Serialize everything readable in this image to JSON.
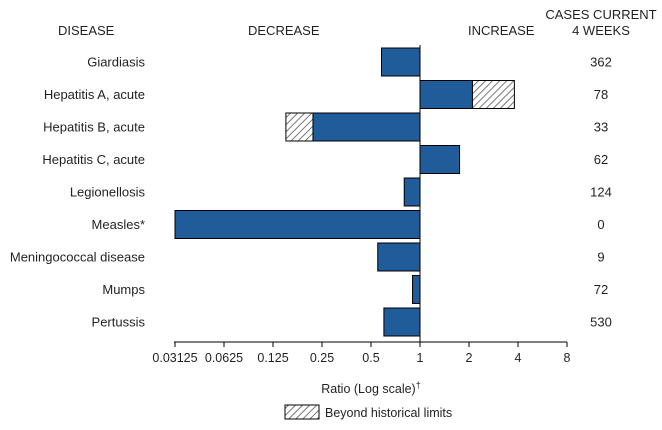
{
  "headers": {
    "disease": "DISEASE",
    "decrease": "DECREASE",
    "increase": "INCREASE",
    "cases_line1": "CASES CURRENT",
    "cases_line2": "4 WEEKS"
  },
  "colors": {
    "bar": "#1f5c99",
    "outline": "#000000",
    "hatch": "#555555"
  },
  "legend": {
    "label": "Beyond historical limits"
  },
  "chart_data": {
    "type": "bar",
    "orientation": "horizontal",
    "scale": "log2",
    "baseline": 1,
    "xlabel": "Ratio (Log scale)",
    "xlabel_note": "†",
    "xlim": [
      0.03125,
      8
    ],
    "xticks": [
      0.03125,
      0.0625,
      0.125,
      0.25,
      0.5,
      1,
      2,
      4,
      8
    ],
    "xtick_labels": [
      "0.03125",
      "0.0625",
      "0.125",
      "0.25",
      "0.5",
      "1",
      "2",
      "4",
      "8"
    ],
    "categories": [
      "Giardiasis",
      "Hepatitis A, acute",
      "Hepatitis B, acute",
      "Hepatitis C, acute",
      "Legionellosis",
      "Measles*",
      "Meningococcal disease",
      "Mumps",
      "Pertussis"
    ],
    "ratios": [
      0.58,
      2.1,
      0.22,
      1.75,
      0.8,
      0.03125,
      0.55,
      0.9,
      0.6
    ],
    "beyond_limits": [
      null,
      3.8,
      0.15,
      null,
      null,
      null,
      null,
      null,
      null
    ],
    "cases": [
      "362",
      "78",
      "33",
      "62",
      "124",
      "0",
      "9",
      "72",
      "530"
    ]
  }
}
